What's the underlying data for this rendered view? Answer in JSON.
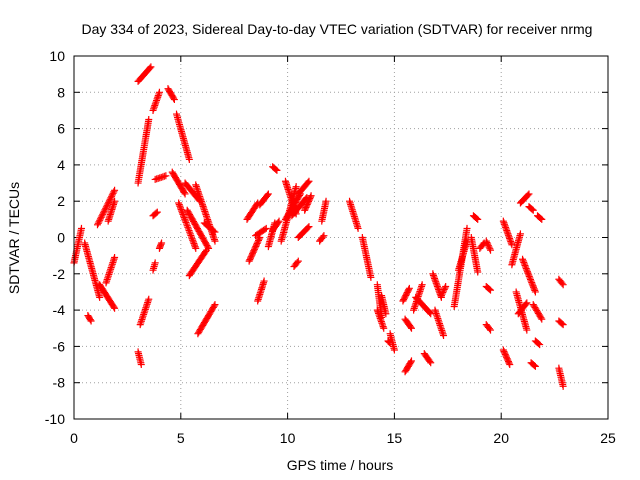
{
  "chart_data": {
    "type": "scatter",
    "title": "Day 334 of 2023, Sidereal Day-to-day VTEC variation (SDTVAR) for receiver nrmg",
    "xlabel": "GPS time / hours",
    "ylabel": "SDTVAR / TECUs",
    "xlim": [
      0,
      25
    ],
    "ylim": [
      -10,
      10
    ],
    "xticks": [
      0,
      5,
      10,
      15,
      20,
      25
    ],
    "yticks": [
      -10,
      -8,
      -6,
      -4,
      -2,
      0,
      2,
      4,
      6,
      8,
      10
    ],
    "grid": true,
    "marker": "plus",
    "color": "#ff0000",
    "segments": [
      {
        "x0": 0.0,
        "x1": 0.35,
        "y0": -1.4,
        "y1": 0.5
      },
      {
        "x0": 0.5,
        "x1": 1.2,
        "y0": -0.3,
        "y1": -3.3
      },
      {
        "x0": 0.65,
        "x1": 0.8,
        "y0": -4.3,
        "y1": -4.6
      },
      {
        "x0": 1.1,
        "x1": 1.9,
        "y0": 0.7,
        "y1": 2.6
      },
      {
        "x0": 1.2,
        "x1": 1.9,
        "y0": -2.6,
        "y1": -3.9
      },
      {
        "x0": 1.5,
        "x1": 1.9,
        "y0": -2.5,
        "y1": -1.1
      },
      {
        "x0": 1.6,
        "x1": 1.9,
        "y0": 0.9,
        "y1": 2.0
      },
      {
        "x0": 3.0,
        "x1": 3.15,
        "y0": -6.3,
        "y1": -7.0
      },
      {
        "x0": 3.1,
        "x1": 3.5,
        "y0": -4.8,
        "y1": -3.4
      },
      {
        "x0": 3.0,
        "x1": 3.5,
        "y0": 3.0,
        "y1": 6.5
      },
      {
        "x0": 3.0,
        "x1": 3.6,
        "y0": 8.6,
        "y1": 9.4
      },
      {
        "x0": 3.7,
        "x1": 4.0,
        "y0": 7.0,
        "y1": 8.0
      },
      {
        "x0": 3.7,
        "x1": 3.8,
        "y0": -1.8,
        "y1": -1.4
      },
      {
        "x0": 3.7,
        "x1": 3.9,
        "y0": 1.2,
        "y1": 1.4
      },
      {
        "x0": 4.0,
        "x1": 4.1,
        "y0": -0.6,
        "y1": -0.3
      },
      {
        "x0": 3.8,
        "x1": 4.3,
        "y0": 3.2,
        "y1": 3.4
      },
      {
        "x0": 4.4,
        "x1": 4.7,
        "y0": 8.2,
        "y1": 7.6
      },
      {
        "x0": 4.6,
        "x1": 5.2,
        "y0": 3.6,
        "y1": 2.4
      },
      {
        "x0": 4.8,
        "x1": 5.4,
        "y0": 6.8,
        "y1": 4.3
      },
      {
        "x0": 4.9,
        "x1": 5.7,
        "y0": 1.9,
        "y1": -0.6
      },
      {
        "x0": 5.2,
        "x1": 5.9,
        "y0": 3.0,
        "y1": 2.0
      },
      {
        "x0": 5.3,
        "x1": 6.3,
        "y0": 1.5,
        "y1": -0.6
      },
      {
        "x0": 5.4,
        "x1": 6.2,
        "y0": -2.1,
        "y1": -0.7
      },
      {
        "x0": 5.7,
        "x1": 6.6,
        "y0": 2.9,
        "y1": -0.2
      },
      {
        "x0": 5.8,
        "x1": 6.6,
        "y0": -5.3,
        "y1": -3.7
      },
      {
        "x0": 6.1,
        "x1": 6.6,
        "y0": 0.8,
        "y1": 0.3
      },
      {
        "x0": 8.1,
        "x1": 8.6,
        "y0": 1.0,
        "y1": 1.9
      },
      {
        "x0": 8.2,
        "x1": 8.7,
        "y0": -1.3,
        "y1": 0.0
      },
      {
        "x0": 8.5,
        "x1": 9.0,
        "y0": 0.1,
        "y1": 0.5
      },
      {
        "x0": 8.6,
        "x1": 8.9,
        "y0": -3.5,
        "y1": -2.4
      },
      {
        "x0": 8.7,
        "x1": 9.1,
        "y0": 1.8,
        "y1": 2.4
      },
      {
        "x0": 9.1,
        "x1": 9.4,
        "y0": -0.5,
        "y1": 0.8
      },
      {
        "x0": 9.3,
        "x1": 9.5,
        "y0": 3.9,
        "y1": 3.7
      },
      {
        "x0": 9.3,
        "x1": 9.6,
        "y0": 0.4,
        "y1": 0.9
      },
      {
        "x0": 9.9,
        "x1": 10.4,
        "y0": 3.1,
        "y1": 1.3
      },
      {
        "x0": 9.7,
        "x1": 10.4,
        "y0": -0.2,
        "y1": 2.8
      },
      {
        "x0": 9.9,
        "x1": 10.6,
        "y0": 1.0,
        "y1": 2.4
      },
      {
        "x0": 10.2,
        "x1": 10.9,
        "y0": 1.2,
        "y1": 2.2
      },
      {
        "x0": 10.3,
        "x1": 10.5,
        "y0": -1.6,
        "y1": -1.3
      },
      {
        "x0": 10.5,
        "x1": 11.0,
        "y0": 2.4,
        "y1": 3.1
      },
      {
        "x0": 10.5,
        "x1": 11.0,
        "y0": 0.0,
        "y1": 0.6
      },
      {
        "x0": 10.8,
        "x1": 11.1,
        "y0": 1.5,
        "y1": 2.3
      },
      {
        "x0": 11.6,
        "x1": 11.8,
        "y0": 0.9,
        "y1": 2.0
      },
      {
        "x0": 11.5,
        "x1": 11.7,
        "y0": -0.2,
        "y1": 0.1
      },
      {
        "x0": 12.9,
        "x1": 13.3,
        "y0": 2.0,
        "y1": 0.5
      },
      {
        "x0": 13.5,
        "x1": 13.9,
        "y0": 0.0,
        "y1": -2.2
      },
      {
        "x0": 14.2,
        "x1": 14.4,
        "y0": -2.6,
        "y1": -4.4
      },
      {
        "x0": 14.2,
        "x1": 14.5,
        "y0": -4.0,
        "y1": -5.0
      },
      {
        "x0": 14.4,
        "x1": 14.6,
        "y0": -3.2,
        "y1": -4.2
      },
      {
        "x0": 14.8,
        "x1": 15.0,
        "y0": -5.3,
        "y1": -6.2
      },
      {
        "x0": 14.7,
        "x1": 14.8,
        "y0": -5.7,
        "y1": -5.8
      },
      {
        "x0": 15.4,
        "x1": 15.7,
        "y0": -3.5,
        "y1": -2.8
      },
      {
        "x0": 15.5,
        "x1": 15.8,
        "y0": -4.5,
        "y1": -5.0
      },
      {
        "x0": 15.5,
        "x1": 15.8,
        "y0": -7.4,
        "y1": -6.8
      },
      {
        "x0": 15.9,
        "x1": 16.3,
        "y0": -4.0,
        "y1": -2.6
      },
      {
        "x0": 16.0,
        "x1": 16.7,
        "y0": -3.3,
        "y1": -4.2
      },
      {
        "x0": 16.4,
        "x1": 16.7,
        "y0": -6.4,
        "y1": -6.9
      },
      {
        "x0": 16.8,
        "x1": 17.2,
        "y0": -2.0,
        "y1": -3.3
      },
      {
        "x0": 16.9,
        "x1": 17.3,
        "y0": -4.0,
        "y1": -5.4
      },
      {
        "x0": 17.2,
        "x1": 17.4,
        "y0": -3.2,
        "y1": -2.7
      },
      {
        "x0": 17.8,
        "x1": 18.4,
        "y0": -3.8,
        "y1": 0.5
      },
      {
        "x0": 18.0,
        "x1": 18.4,
        "y0": -1.8,
        "y1": -0.2
      },
      {
        "x0": 18.6,
        "x1": 18.9,
        "y0": 0.0,
        "y1": -1.9
      },
      {
        "x0": 18.7,
        "x1": 18.9,
        "y0": 1.2,
        "y1": 1.0
      },
      {
        "x0": 19.3,
        "x1": 19.5,
        "y0": -0.2,
        "y1": -0.7
      },
      {
        "x0": 19.0,
        "x1": 19.2,
        "y0": -0.6,
        "y1": -0.3
      },
      {
        "x0": 19.3,
        "x1": 19.5,
        "y0": -2.7,
        "y1": -2.9
      },
      {
        "x0": 19.3,
        "x1": 19.5,
        "y0": -4.8,
        "y1": -5.1
      },
      {
        "x0": 20.1,
        "x1": 20.4,
        "y0": -6.2,
        "y1": -7.0
      },
      {
        "x0": 20.1,
        "x1": 20.5,
        "y0": 0.9,
        "y1": -0.4
      },
      {
        "x0": 20.5,
        "x1": 20.9,
        "y0": -1.5,
        "y1": 0.2
      },
      {
        "x0": 20.7,
        "x1": 21.2,
        "y0": -3.0,
        "y1": -5.1
      },
      {
        "x0": 20.8,
        "x1": 21.2,
        "y0": -4.2,
        "y1": -3.6
      },
      {
        "x0": 20.9,
        "x1": 21.3,
        "y0": 1.9,
        "y1": 2.4
      },
      {
        "x0": 21.0,
        "x1": 21.6,
        "y0": -1.2,
        "y1": -3.0
      },
      {
        "x0": 21.3,
        "x1": 21.5,
        "y0": 1.7,
        "y1": 1.5
      },
      {
        "x0": 21.5,
        "x1": 21.9,
        "y0": -3.7,
        "y1": -4.5
      },
      {
        "x0": 21.4,
        "x1": 21.6,
        "y0": -6.9,
        "y1": -7.1
      },
      {
        "x0": 21.6,
        "x1": 21.8,
        "y0": -5.7,
        "y1": -5.9
      },
      {
        "x0": 21.7,
        "x1": 21.9,
        "y0": 1.2,
        "y1": 1.0
      },
      {
        "x0": 22.7,
        "x1": 22.9,
        "y0": -2.3,
        "y1": -2.6
      },
      {
        "x0": 22.7,
        "x1": 22.9,
        "y0": -4.6,
        "y1": -4.8
      },
      {
        "x0": 22.7,
        "x1": 22.9,
        "y0": -7.2,
        "y1": -8.2
      }
    ]
  }
}
